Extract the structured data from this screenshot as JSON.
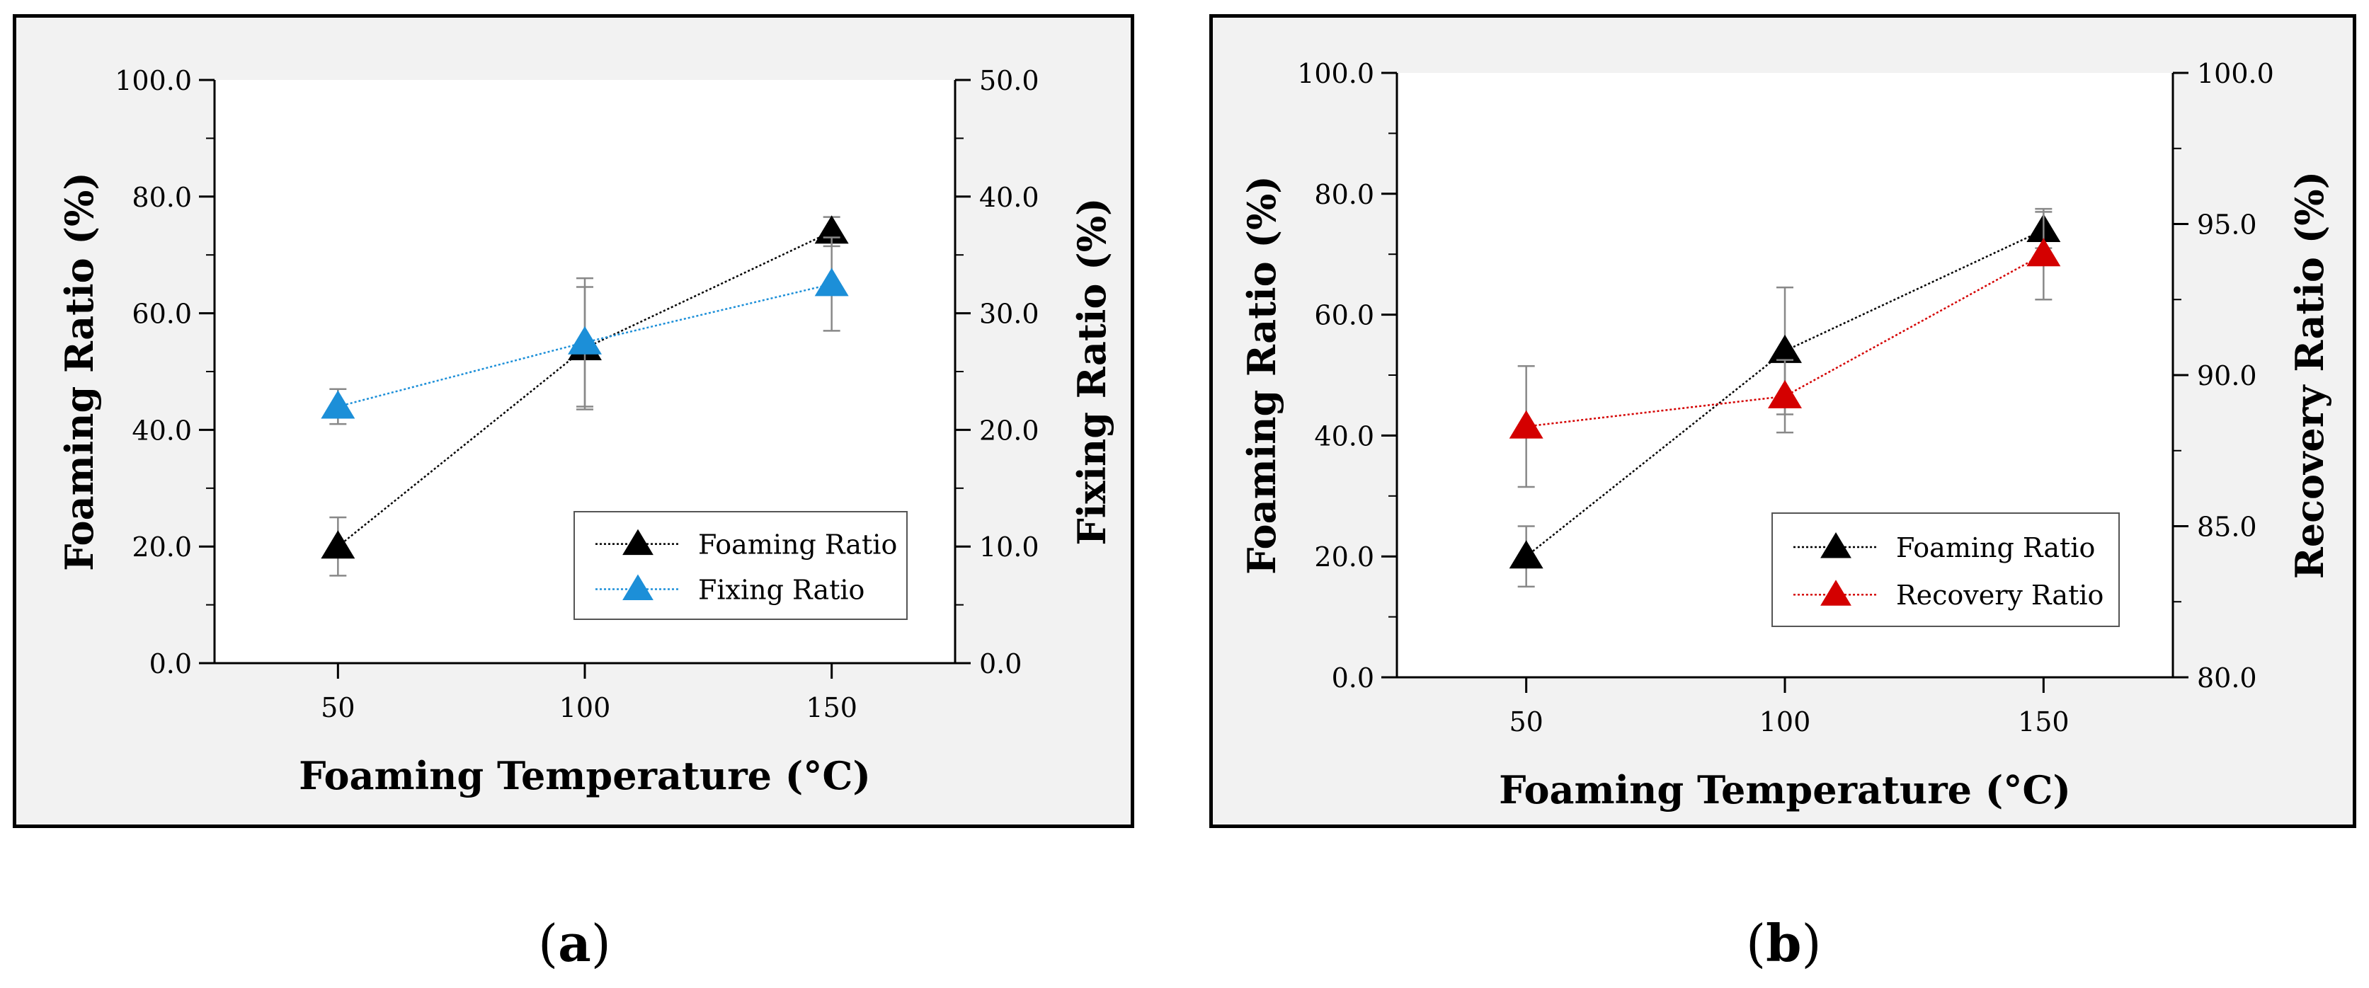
{
  "colors": {
    "foaming": "#000000",
    "fixing": "#1c8fd8",
    "recovery": "#d40000",
    "frame": "#000000",
    "panel_bg": "#f2f2f2"
  },
  "captions": {
    "a": "a",
    "b": "b"
  },
  "chart_data": [
    {
      "id": "a",
      "type": "line",
      "xlabel": "Foaming Temperature (°C)",
      "ylabel_left": "Foaming Ratio (%)",
      "ylabel_right": "Fixing Ratio (%)",
      "xlim": [
        25,
        175
      ],
      "ylim_left": [
        0,
        100
      ],
      "ylim_right": [
        0,
        50
      ],
      "x_ticks": [
        "50",
        "100",
        "150"
      ],
      "y_ticks_left": [
        "0.0",
        "20.0",
        "40.0",
        "60.0",
        "80.0",
        "100.0"
      ],
      "y_ticks_right": [
        "0.0",
        "10.0",
        "20.0",
        "30.0",
        "40.0",
        "50.0"
      ],
      "legend_position": "lower-right",
      "series": [
        {
          "name": "Foaming Ratio",
          "axis": "left",
          "x": [
            50,
            100,
            150
          ],
          "y": [
            20.0,
            54.0,
            74.0
          ],
          "err": [
            5.0,
            10.5,
            2.5
          ]
        },
        {
          "name": "Fixing Ratio",
          "axis": "right",
          "x": [
            50,
            100,
            150
          ],
          "y": [
            22.0,
            27.5,
            32.5
          ],
          "err": [
            1.5,
            5.5,
            4.0
          ]
        }
      ]
    },
    {
      "id": "b",
      "type": "line",
      "xlabel": "Foaming Temperature (°C)",
      "ylabel_left": "Foaming Ratio (%)",
      "ylabel_right": "Recovery Ratio (%)",
      "xlim": [
        25,
        175
      ],
      "ylim_left": [
        0,
        100
      ],
      "ylim_right": [
        80,
        100
      ],
      "x_ticks": [
        "50",
        "100",
        "150"
      ],
      "y_ticks_left": [
        "0.0",
        "20.0",
        "40.0",
        "60.0",
        "80.0",
        "100.0"
      ],
      "y_ticks_right": [
        "80.0",
        "85.0",
        "90.0",
        "95.0",
        "100.0"
      ],
      "legend_position": "lower-right",
      "series": [
        {
          "name": "Foaming Ratio",
          "axis": "left",
          "x": [
            50,
            100,
            150
          ],
          "y": [
            20.0,
            54.0,
            74.0
          ],
          "err": [
            5.0,
            10.5,
            3.0
          ]
        },
        {
          "name": "Recovery Ratio",
          "axis": "right",
          "x": [
            50,
            100,
            150
          ],
          "y": [
            88.3,
            89.3,
            94.0
          ],
          "err": [
            2.0,
            1.2,
            1.5
          ]
        }
      ]
    }
  ]
}
